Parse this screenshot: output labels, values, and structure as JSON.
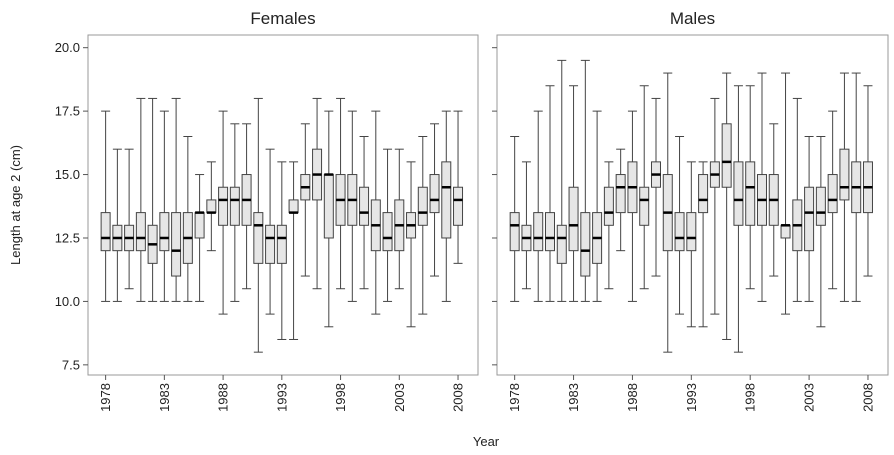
{
  "axis_labels": {
    "x": "Year",
    "y": "Length at age 2 (cm)"
  },
  "chart_data": [
    {
      "type": "box",
      "title": "Females",
      "x": [
        1978,
        1979,
        1980,
        1981,
        1982,
        1983,
        1984,
        1985,
        1986,
        1987,
        1988,
        1989,
        1990,
        1991,
        1992,
        1993,
        1994,
        1995,
        1996,
        1997,
        1998,
        1999,
        2000,
        2001,
        2002,
        2003,
        2004,
        2005,
        2006,
        2007,
        2008
      ],
      "min": [
        10,
        10,
        10.5,
        10,
        10,
        10,
        10,
        10,
        10,
        12,
        9.5,
        10,
        10.5,
        8,
        9.5,
        8.5,
        8.5,
        11,
        10.5,
        9,
        10.5,
        10,
        10.5,
        9.5,
        10,
        10.5,
        9,
        9.5,
        11,
        10,
        11.5
      ],
      "q1": [
        12,
        12,
        12,
        12,
        11.5,
        12,
        11,
        11.5,
        12.5,
        13.5,
        13,
        13,
        13,
        11.5,
        11.5,
        11.5,
        13.5,
        14,
        14,
        12.5,
        13,
        13,
        13,
        12,
        12,
        12,
        12.5,
        13,
        13.5,
        12.5,
        13
      ],
      "median": [
        12.5,
        12.5,
        12.5,
        12.5,
        12.25,
        12.5,
        12,
        12.5,
        13.5,
        13.5,
        14,
        14,
        14,
        13,
        12.5,
        12.5,
        13.5,
        14.5,
        15,
        15,
        14,
        14,
        13.5,
        13,
        12.5,
        13,
        13,
        13.5,
        14,
        14.5,
        14
      ],
      "q3": [
        13.5,
        13,
        13,
        13.5,
        13,
        13.5,
        13.5,
        13.5,
        13.5,
        14,
        14.5,
        14.5,
        15,
        13.5,
        13,
        13,
        14,
        15,
        16,
        15,
        15,
        15,
        14.5,
        14,
        13.5,
        14,
        13.5,
        14.5,
        15,
        15.5,
        14.5
      ],
      "max": [
        17.5,
        16,
        16,
        18,
        18,
        17.5,
        18,
        16.5,
        15,
        15.5,
        17.5,
        17,
        17,
        18,
        16,
        15.5,
        15.5,
        17,
        18,
        17.5,
        18,
        17.5,
        16.5,
        17.5,
        16,
        16,
        15.5,
        16.5,
        17,
        17.5,
        17.5
      ],
      "color": "#e6e6e6",
      "xlim": [
        1976.5,
        2009.7
      ],
      "xticks": [
        1978,
        1983,
        1988,
        1993,
        1998,
        2003,
        2008
      ],
      "ylim": [
        7.1,
        20.5
      ],
      "yticks": [
        {
          "value": 7.5,
          "label": "7.5"
        },
        {
          "value": 10,
          "label": "10.0"
        },
        12.5,
        {
          "value": 15,
          "label": "15.0"
        },
        17.5,
        {
          "value": 20,
          "label": "20.0"
        }
      ]
    },
    {
      "type": "box",
      "title": "Males",
      "x": [
        1978,
        1979,
        1980,
        1981,
        1982,
        1983,
        1984,
        1985,
        1986,
        1987,
        1988,
        1989,
        1990,
        1991,
        1992,
        1993,
        1994,
        1995,
        1996,
        1997,
        1998,
        1999,
        2000,
        2001,
        2002,
        2003,
        2004,
        2005,
        2006,
        2007,
        2008
      ],
      "min": [
        10,
        10.5,
        10,
        10,
        10,
        10,
        10,
        10,
        10.5,
        12,
        10,
        10.5,
        11,
        8,
        9.5,
        9,
        9,
        9.5,
        8.5,
        8,
        10.5,
        10,
        11,
        9.5,
        10,
        10,
        9,
        10.5,
        10,
        10,
        11
      ],
      "q1": [
        12,
        12,
        12,
        12,
        11.5,
        12,
        11,
        11.5,
        13,
        13.5,
        13.5,
        13,
        14.5,
        12,
        12,
        12,
        13.5,
        14.5,
        14.5,
        13,
        13,
        13,
        13,
        12.5,
        12,
        12,
        13,
        13.5,
        14,
        13.5,
        13.5
      ],
      "median": [
        13,
        12.5,
        12.5,
        12.5,
        12.5,
        13,
        12,
        12.5,
        13.5,
        14.5,
        14.5,
        14,
        15,
        13.5,
        12.5,
        12.5,
        14,
        15,
        15.5,
        14,
        14.5,
        14,
        14,
        13,
        13,
        13.5,
        13.5,
        14,
        14.5,
        14.5,
        14.5
      ],
      "q3": [
        13.5,
        13,
        13.5,
        13.5,
        13,
        14.5,
        13.5,
        13.5,
        14.5,
        15,
        15.5,
        14.5,
        15.5,
        15,
        13.5,
        13.5,
        15,
        15.5,
        17,
        15.5,
        15.5,
        15,
        15,
        13,
        14,
        14.5,
        14.5,
        15,
        16,
        15.5,
        15.5
      ],
      "max": [
        16.5,
        15.5,
        17.5,
        18.5,
        19.5,
        18.5,
        19.5,
        17.5,
        15.5,
        16,
        17.5,
        18.5,
        18,
        19,
        16.5,
        15.5,
        15.5,
        18,
        19,
        18.5,
        18.5,
        19,
        17,
        19,
        18,
        16.5,
        16.5,
        17.5,
        19,
        19,
        18.5
      ],
      "color": "#e6e6e6",
      "xlim": [
        1976.5,
        2009.7
      ],
      "xticks": [
        1978,
        1983,
        1988,
        1993,
        1998,
        2003,
        2008
      ],
      "ylim": [
        7.1,
        20.5
      ],
      "yticks": [
        {
          "value": 7.5,
          "label": "7.5"
        },
        {
          "value": 10,
          "label": "10.0"
        },
        12.5,
        {
          "value": 15,
          "label": "15.0"
        },
        17.5,
        {
          "value": 20,
          "label": "20.0"
        }
      ]
    }
  ]
}
